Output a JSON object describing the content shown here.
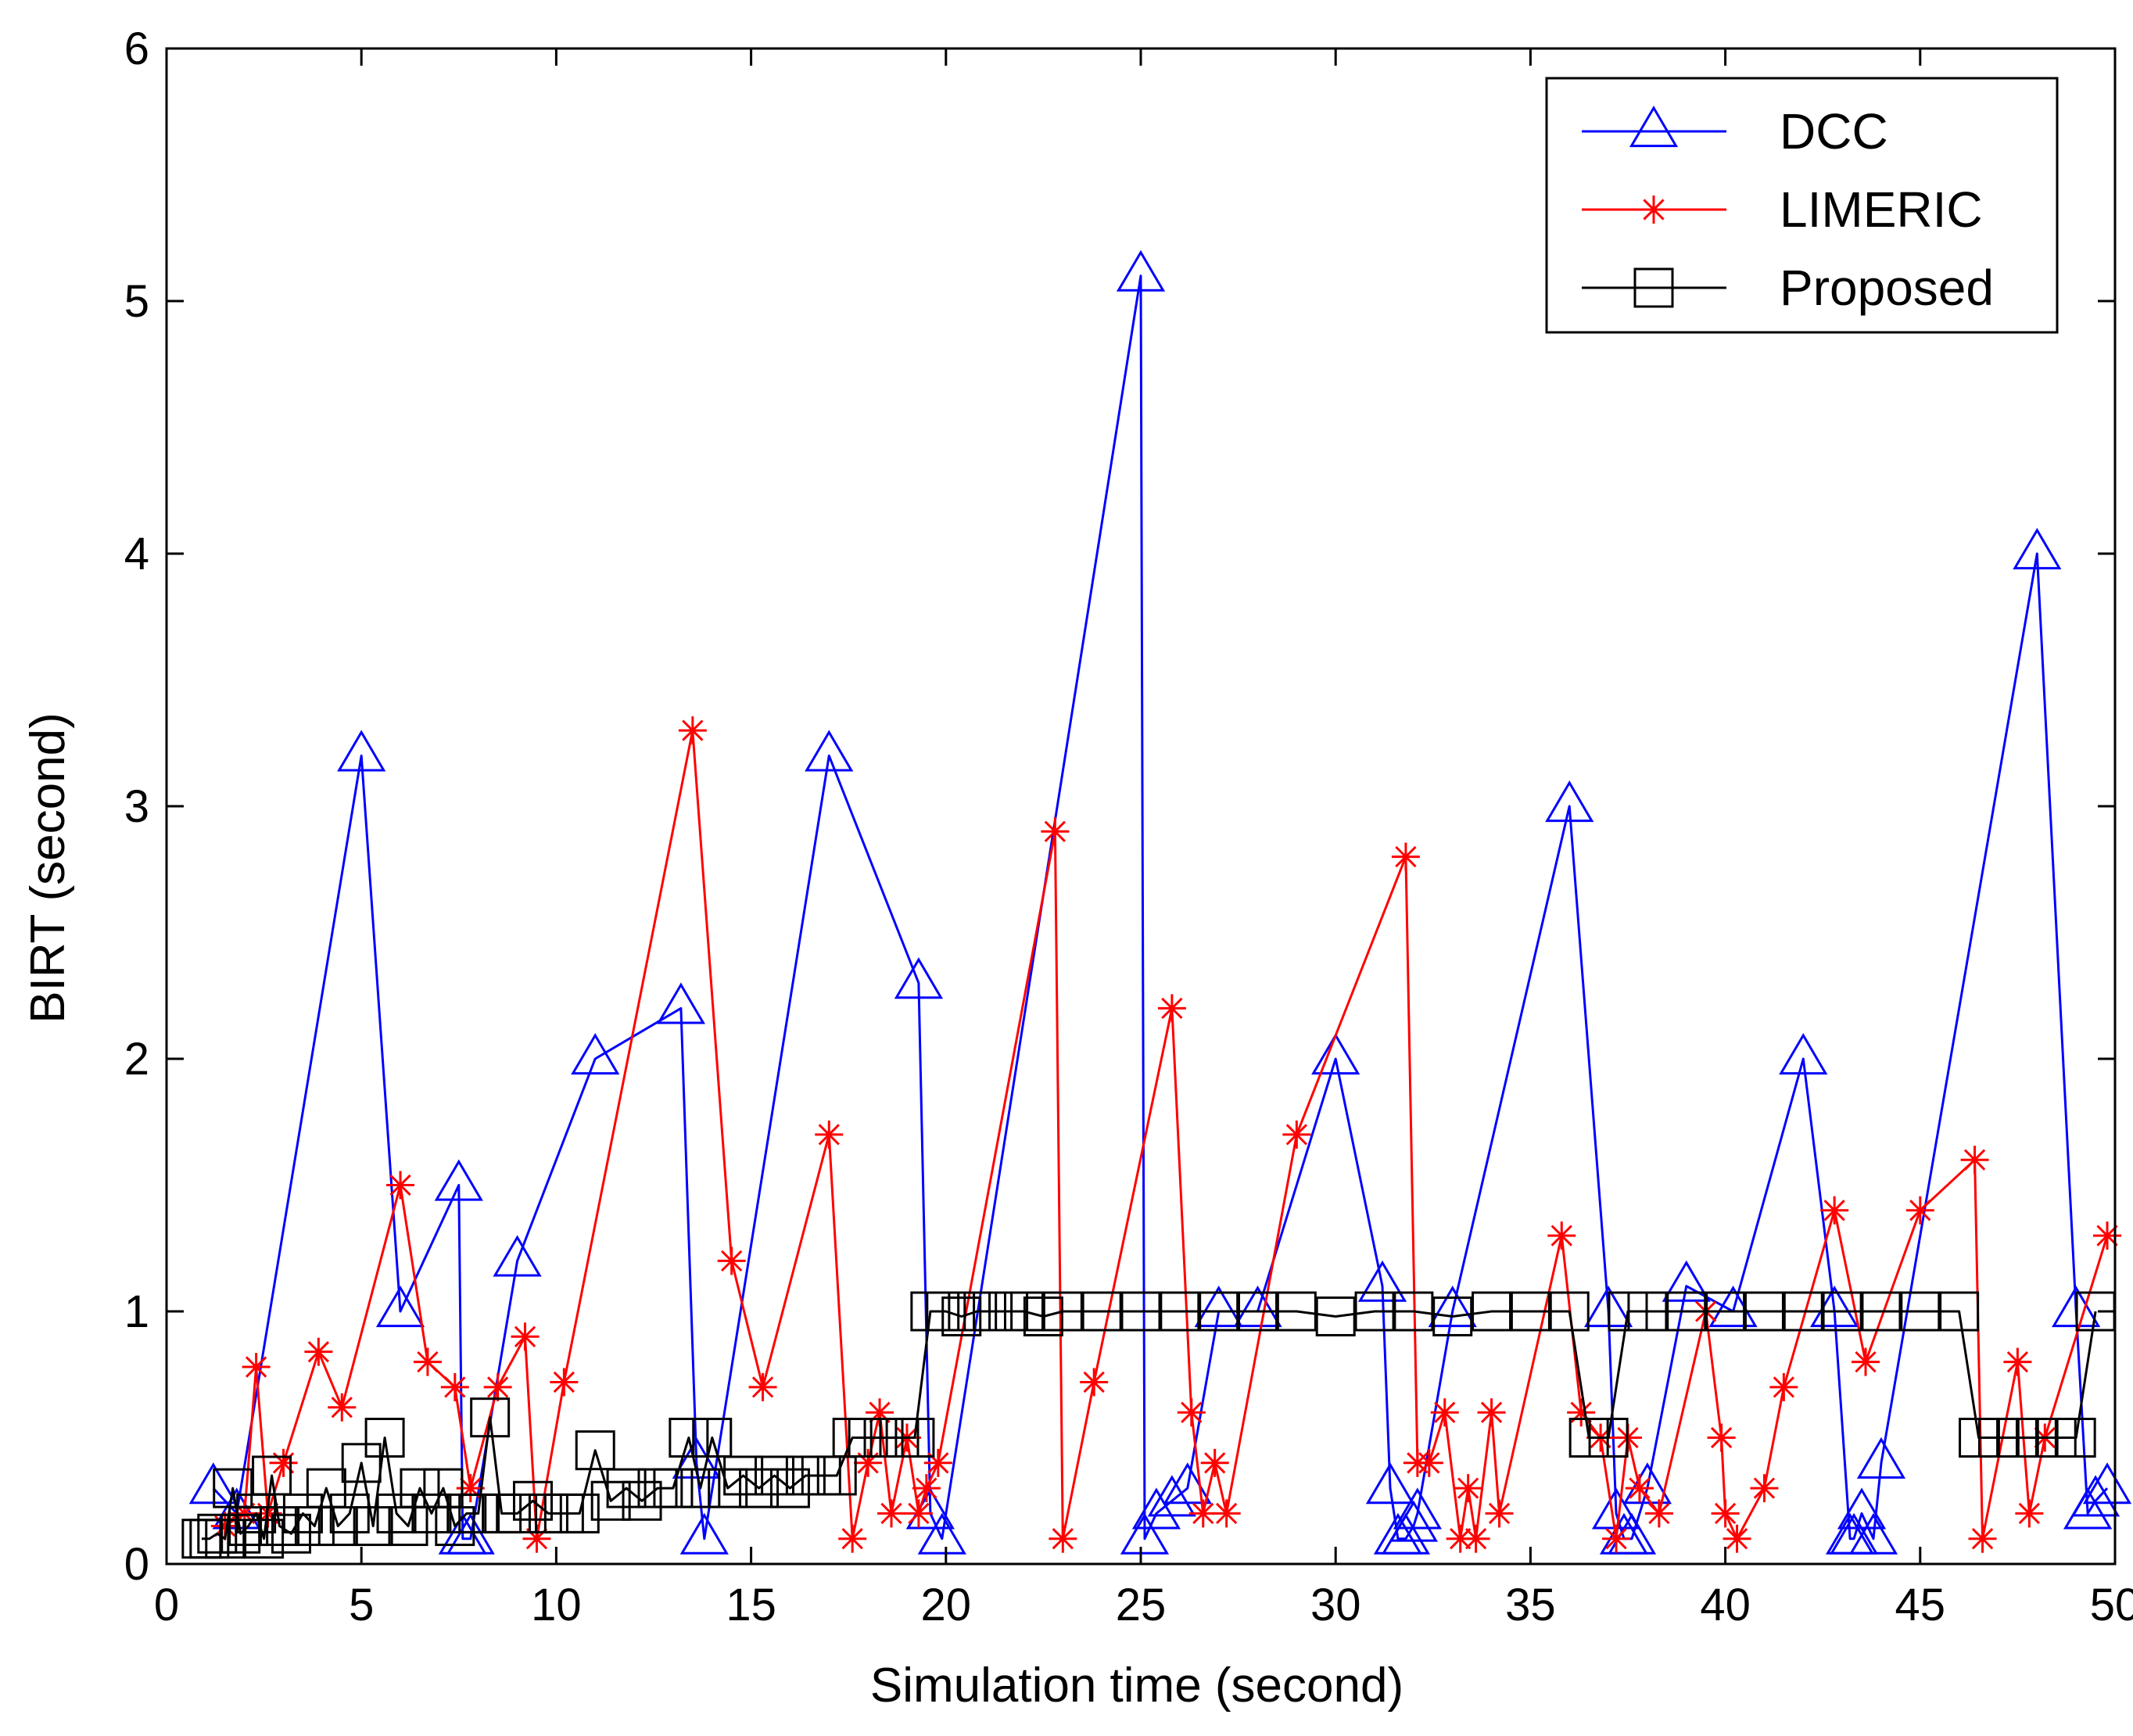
{
  "chart_data": {
    "type": "line",
    "title": "",
    "xlabel": "Simulation time (second)",
    "ylabel": "BIRT (second)",
    "xlim": [
      0,
      50
    ],
    "ylim": [
      0,
      6
    ],
    "xticks": [
      0,
      5,
      10,
      15,
      20,
      25,
      30,
      35,
      40,
      45,
      50
    ],
    "yticks": [
      0,
      1,
      2,
      3,
      4,
      5,
      6
    ],
    "grid": false,
    "legend_position": "top-right",
    "series": [
      {
        "name": "DCC",
        "color": "#0000ff",
        "marker": "triangle",
        "x": [
          1.2,
          1.8,
          5.0,
          6.0,
          7.5,
          7.6,
          7.8,
          9.0,
          11.0,
          13.2,
          13.6,
          13.8,
          17.0,
          19.3,
          19.6,
          19.9,
          25.0,
          25.1,
          25.4,
          25.8,
          26.2,
          27.0,
          28.0,
          30.0,
          31.2,
          31.4,
          31.6,
          31.8,
          32.0,
          32.1,
          33.0,
          36.0,
          37.0,
          37.2,
          37.4,
          37.6,
          38.0,
          39.0,
          40.2,
          42.0,
          42.8,
          43.2,
          43.3,
          43.5,
          43.8,
          44.0,
          48.0,
          49.0,
          49.3,
          49.5,
          49.8
        ],
        "y": [
          0.3,
          0.2,
          3.2,
          1.0,
          1.5,
          0.1,
          0.1,
          1.2,
          2.0,
          2.2,
          0.4,
          0.1,
          3.2,
          2.3,
          0.2,
          0.1,
          5.1,
          0.1,
          0.2,
          0.25,
          0.3,
          1.0,
          1.0,
          2.0,
          1.1,
          0.3,
          0.1,
          0.1,
          0.15,
          0.2,
          1.0,
          3.0,
          1.0,
          0.2,
          0.1,
          0.1,
          0.3,
          1.1,
          1.0,
          2.0,
          1.0,
          0.1,
          0.1,
          0.2,
          0.1,
          0.4,
          4.0,
          1.0,
          0.2,
          0.25,
          0.3
        ]
      },
      {
        "name": "LIMERIC",
        "color": "#ff0000",
        "marker": "asterisk",
        "x": [
          1.5,
          2.0,
          2.3,
          2.6,
          3.0,
          3.9,
          4.5,
          6.0,
          6.7,
          7.4,
          7.8,
          8.5,
          9.2,
          9.5,
          10.2,
          13.5,
          14.5,
          15.3,
          17.0,
          17.6,
          18.0,
          18.3,
          18.6,
          19.0,
          19.3,
          19.5,
          19.8,
          22.8,
          23.0,
          23.8,
          25.8,
          26.3,
          26.6,
          26.9,
          27.2,
          29.0,
          31.8,
          32.1,
          32.4,
          32.8,
          33.2,
          33.4,
          33.6,
          34.0,
          34.2,
          35.8,
          36.3,
          36.8,
          37.2,
          37.5,
          37.8,
          38.3,
          39.5,
          39.9,
          40.0,
          40.3,
          41.0,
          41.5,
          42.8,
          43.6,
          45.0,
          46.4,
          46.6,
          47.5,
          47.8,
          48.2,
          49.8
        ],
        "y": [
          0.15,
          0.2,
          0.78,
          0.2,
          0.4,
          0.84,
          0.62,
          1.5,
          0.8,
          0.7,
          0.3,
          0.7,
          0.9,
          0.1,
          0.72,
          3.3,
          1.2,
          0.7,
          1.7,
          0.1,
          0.4,
          0.6,
          0.2,
          0.5,
          0.2,
          0.3,
          0.4,
          2.9,
          0.1,
          0.72,
          2.2,
          0.6,
          0.2,
          0.4,
          0.2,
          1.7,
          2.8,
          0.4,
          0.4,
          0.6,
          0.1,
          0.3,
          0.1,
          0.6,
          0.2,
          1.3,
          0.6,
          0.5,
          0.1,
          0.5,
          0.3,
          0.2,
          1.0,
          0.5,
          0.2,
          0.1,
          0.3,
          0.7,
          1.4,
          0.8,
          1.4,
          1.6,
          0.1,
          0.8,
          0.2,
          0.5,
          1.3
        ]
      },
      {
        "name": "Proposed",
        "color": "#000000",
        "marker": "square",
        "x": [
          0.9,
          1.1,
          1.3,
          1.5,
          1.7,
          1.9,
          2.1,
          2.3,
          2.5,
          2.7,
          2.9,
          3.2,
          3.5,
          3.8,
          4.1,
          4.4,
          4.7,
          5.0,
          5.3,
          5.6,
          5.9,
          6.2,
          6.5,
          6.8,
          7.1,
          7.4,
          7.7,
          8.0,
          8.3,
          8.6,
          9.0,
          9.4,
          9.8,
          10.2,
          10.6,
          11.0,
          11.4,
          11.8,
          12.2,
          12.6,
          13.0,
          13.4,
          13.7,
          14.0,
          14.4,
          14.8,
          15.2,
          15.6,
          16.0,
          16.4,
          16.8,
          17.2,
          17.6,
          18.0,
          18.4,
          18.8,
          19.2,
          19.6,
          20.0,
          20.4,
          20.8,
          21.2,
          21.6,
          22.0,
          22.5,
          23.0,
          24.0,
          25.0,
          26.0,
          27.0,
          28.0,
          29.0,
          30.0,
          31.0,
          32.0,
          33.0,
          34.0,
          35.0,
          36.0,
          36.5,
          37.0,
          37.5,
          38.0,
          39.0,
          40.0,
          41.0,
          42.0,
          43.0,
          44.0,
          45.0,
          46.0,
          46.5,
          47.0,
          47.5,
          48.0,
          48.5,
          49.0,
          49.5
        ],
        "y": [
          0.1,
          0.1,
          0.12,
          0.1,
          0.3,
          0.12,
          0.15,
          0.2,
          0.1,
          0.35,
          0.15,
          0.12,
          0.2,
          0.15,
          0.3,
          0.15,
          0.2,
          0.4,
          0.15,
          0.5,
          0.2,
          0.15,
          0.3,
          0.2,
          0.3,
          0.15,
          0.2,
          0.2,
          0.58,
          0.2,
          0.2,
          0.25,
          0.2,
          0.2,
          0.2,
          0.45,
          0.25,
          0.3,
          0.25,
          0.3,
          0.3,
          0.5,
          0.3,
          0.5,
          0.3,
          0.35,
          0.3,
          0.35,
          0.3,
          0.35,
          0.35,
          0.35,
          0.5,
          0.5,
          0.5,
          0.5,
          0.5,
          1.0,
          1.0,
          0.98,
          1.0,
          1.0,
          1.0,
          1.0,
          0.98,
          1.0,
          1.0,
          1.0,
          1.0,
          1.0,
          1.0,
          1.0,
          0.98,
          1.0,
          1.0,
          0.98,
          1.0,
          1.0,
          1.0,
          0.5,
          0.5,
          1.0,
          1.0,
          1.0,
          1.0,
          1.0,
          1.0,
          1.0,
          1.0,
          1.0,
          1.0,
          0.5,
          0.5,
          0.5,
          0.5,
          0.5,
          0.5,
          1.0
        ]
      }
    ]
  }
}
